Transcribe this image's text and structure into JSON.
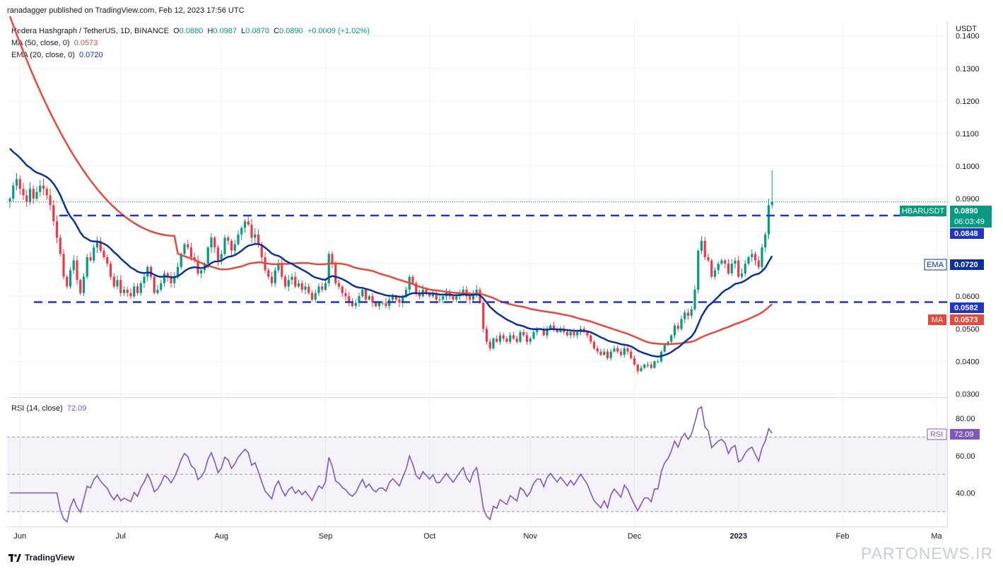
{
  "header": {
    "publisher": "ranadagger published on TradingView.com, Feb 12, 2023 17:56 UTC",
    "symbol_line": "Hedera Hashgraph / TetherUS, 1D, BINANCE",
    "ohlc": {
      "o_label": "O",
      "o": "0.0880",
      "h_label": "H",
      "h": "0.0987",
      "l_label": "L",
      "l": "0.0870",
      "c_label": "C",
      "c": "0.0890",
      "change": "+0.0009 (+1.02%)"
    },
    "ma_label": "MA (50, close, 0)",
    "ma_value": "0.0573",
    "ema_label": "EMA (20, close, 0)",
    "ema_value": "0.0720"
  },
  "rsi_header": {
    "label": "RSI (14, close)",
    "value": "72.09"
  },
  "axis": {
    "currency": "USDT"
  },
  "badges": {
    "symbol": "HBARUSDT",
    "price": "0.0890",
    "countdown": "06:03:49",
    "level_high": "0.0848",
    "level_low": "0.0582",
    "ema_tag": "EMA",
    "ema_value": "0.0720",
    "ma_tag": "MA",
    "ma_value": "0.0573",
    "rsi_tag": "RSI",
    "rsi_value": "72.09"
  },
  "footer": {
    "brand": "TradingView",
    "watermark": "PARTONEWS.IR"
  },
  "colors": {
    "up": "#089981",
    "down": "#f23645",
    "ma": "#e5483d",
    "ema": "#0c3299",
    "rsi": "#7e57c2",
    "level": "#1f35c9",
    "grid": "#eef0f3",
    "price_line": "#089981"
  },
  "chart_data": [
    {
      "type": "candlestick",
      "title": "Hedera Hashgraph / TetherUS, 1D, BINANCE",
      "x_ticks": [
        "Jun",
        "Jul",
        "Aug",
        "Sep",
        "Oct",
        "Nov",
        "Dec",
        "2023",
        "Feb",
        "Ma"
      ],
      "y_ticks": [
        "0.0300",
        "0.0400",
        "0.0500",
        "0.0600",
        "0.0700",
        "0.0800",
        "0.0900",
        "0.1000",
        "0.1100",
        "0.1200",
        "0.1300",
        "0.1400"
      ],
      "ylim": [
        0.029,
        0.1445
      ],
      "grid": true,
      "horizontal_levels": [
        0.0848,
        0.0582
      ],
      "current_price": 0.089,
      "close_series": [
        0.09,
        0.094,
        0.096,
        0.093,
        0.091,
        0.089,
        0.093,
        0.09,
        0.092,
        0.094,
        0.093,
        0.091,
        0.088,
        0.083,
        0.078,
        0.073,
        0.066,
        0.063,
        0.068,
        0.071,
        0.065,
        0.061,
        0.066,
        0.072,
        0.071,
        0.075,
        0.077,
        0.074,
        0.072,
        0.07,
        0.066,
        0.063,
        0.065,
        0.061,
        0.062,
        0.061,
        0.06,
        0.063,
        0.061,
        0.064,
        0.066,
        0.069,
        0.066,
        0.061,
        0.062,
        0.064,
        0.067,
        0.066,
        0.064,
        0.066,
        0.069,
        0.073,
        0.076,
        0.075,
        0.072,
        0.071,
        0.067,
        0.068,
        0.07,
        0.075,
        0.078,
        0.075,
        0.071,
        0.073,
        0.078,
        0.077,
        0.074,
        0.076,
        0.079,
        0.081,
        0.083,
        0.082,
        0.078,
        0.079,
        0.076,
        0.072,
        0.068,
        0.066,
        0.064,
        0.068,
        0.07,
        0.066,
        0.063,
        0.065,
        0.066,
        0.063,
        0.064,
        0.062,
        0.063,
        0.061,
        0.059,
        0.061,
        0.063,
        0.062,
        0.064,
        0.073,
        0.07,
        0.064,
        0.063,
        0.061,
        0.06,
        0.058,
        0.057,
        0.058,
        0.06,
        0.062,
        0.059,
        0.06,
        0.058,
        0.057,
        0.058,
        0.058,
        0.057,
        0.059,
        0.06,
        0.059,
        0.058,
        0.06,
        0.062,
        0.066,
        0.064,
        0.061,
        0.06,
        0.062,
        0.061,
        0.06,
        0.061,
        0.059,
        0.059,
        0.06,
        0.061,
        0.06,
        0.059,
        0.06,
        0.061,
        0.062,
        0.06,
        0.059,
        0.061,
        0.062,
        0.058,
        0.05,
        0.046,
        0.044,
        0.047,
        0.046,
        0.048,
        0.047,
        0.046,
        0.048,
        0.047,
        0.046,
        0.049,
        0.048,
        0.046,
        0.047,
        0.049,
        0.05,
        0.05,
        0.048,
        0.05,
        0.051,
        0.05,
        0.049,
        0.05,
        0.049,
        0.048,
        0.049,
        0.048,
        0.049,
        0.05,
        0.049,
        0.048,
        0.046,
        0.044,
        0.043,
        0.042,
        0.043,
        0.041,
        0.043,
        0.044,
        0.043,
        0.042,
        0.044,
        0.043,
        0.041,
        0.039,
        0.037,
        0.038,
        0.039,
        0.039,
        0.038,
        0.04,
        0.04,
        0.043,
        0.045,
        0.046,
        0.048,
        0.051,
        0.05,
        0.053,
        0.055,
        0.054,
        0.056,
        0.062,
        0.074,
        0.077,
        0.072,
        0.071,
        0.066,
        0.068,
        0.07,
        0.071,
        0.07,
        0.067,
        0.07,
        0.071,
        0.066,
        0.067,
        0.07,
        0.072,
        0.073,
        0.071,
        0.069,
        0.075,
        0.079,
        0.088,
        0.089
      ]
    },
    {
      "type": "line",
      "title": "RSI (14, close)",
      "y_ticks": [
        "40.00",
        "60.00",
        "80.00"
      ],
      "ylim": [
        22,
        91
      ],
      "bands": [
        30,
        50,
        70
      ],
      "last_value": 72.09
    }
  ]
}
